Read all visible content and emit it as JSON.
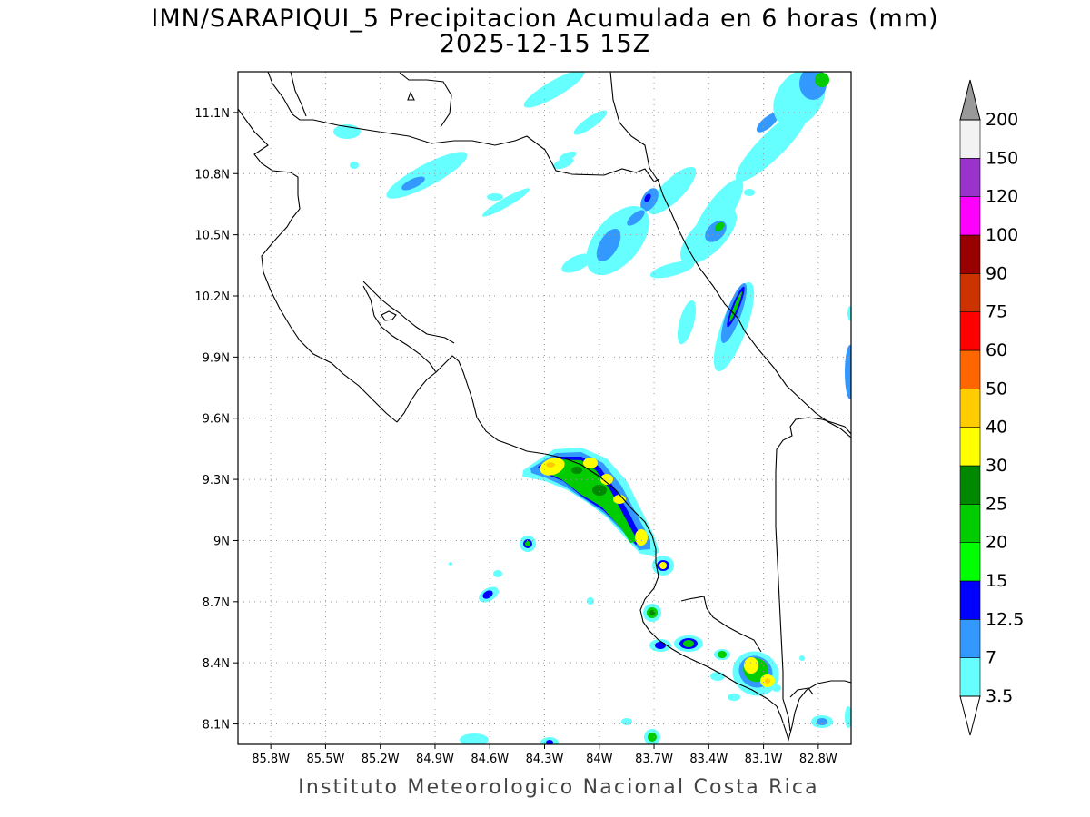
{
  "header": {
    "title_line1": "IMN/SARAPIQUI_5 Precipitacion Acumulada en 6 horas (mm)",
    "title_line2": "2025-12-15 15Z"
  },
  "footer": {
    "credit": "Instituto Meteorologico Nacional Costa Rica"
  },
  "map": {
    "lon_labels": [
      "85.8W",
      "85.5W",
      "85.2W",
      "84.9W",
      "84.6W",
      "84.3W",
      "84W",
      "83.7W",
      "83.4W",
      "83.1W",
      "82.8W"
    ],
    "lat_labels": [
      "11.1N",
      "10.8N",
      "10.5N",
      "10.2N",
      "9.9N",
      "9.6N",
      "9.3N",
      "9N",
      "8.7N",
      "8.4N",
      "8.1N"
    ],
    "lon_range": [
      -85.98,
      -82.62
    ],
    "lat_range": [
      8.0,
      11.3
    ],
    "grid": "dotted"
  },
  "legend": {
    "thresholds": [
      "3.5",
      "7",
      "12.5",
      "15",
      "20",
      "25",
      "30",
      "40",
      "50",
      "60",
      "75",
      "90",
      "100",
      "120",
      "150",
      "200"
    ],
    "colors": [
      "#66ffff",
      "#3399ff",
      "#0000ff",
      "#00ff00",
      "#00cc00",
      "#008800",
      "#ffff00",
      "#ffcc00",
      "#ff6600",
      "#ff0000",
      "#cc3300",
      "#990000",
      "#ff00ff",
      "#9933cc",
      "#f2f2f2"
    ],
    "below_color": "#ffffff",
    "above_color": "#999999"
  }
}
